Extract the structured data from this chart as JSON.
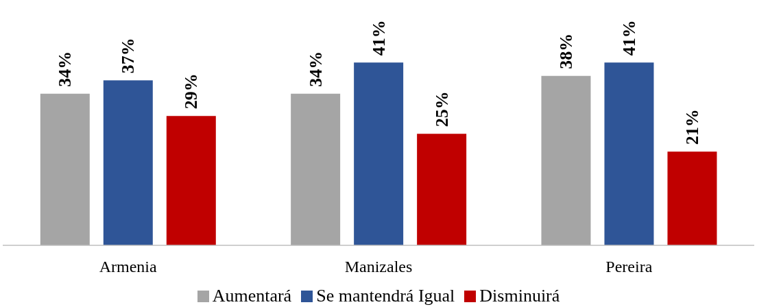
{
  "chart_data": {
    "type": "bar",
    "categories": [
      "Armenia",
      "Manizales",
      "Pereira"
    ],
    "series": [
      {
        "name": "Aumentará",
        "color": "#a5a5a5",
        "values": [
          34,
          34,
          38
        ],
        "value_labels": [
          "34%",
          "34%",
          "38%"
        ]
      },
      {
        "name": "Se mantendrá Igual",
        "color": "#2f5597",
        "values": [
          37,
          41,
          41
        ],
        "value_labels": [
          "37%",
          "41%",
          "41%"
        ]
      },
      {
        "name": "Disminuirá",
        "color": "#c00000",
        "values": [
          29,
          25,
          21
        ],
        "value_labels": [
          "29%",
          "25%",
          "21%"
        ]
      }
    ],
    "ylim": [
      0,
      55
    ],
    "tick_labels": "x",
    "grid": false,
    "legend": "bottom"
  }
}
